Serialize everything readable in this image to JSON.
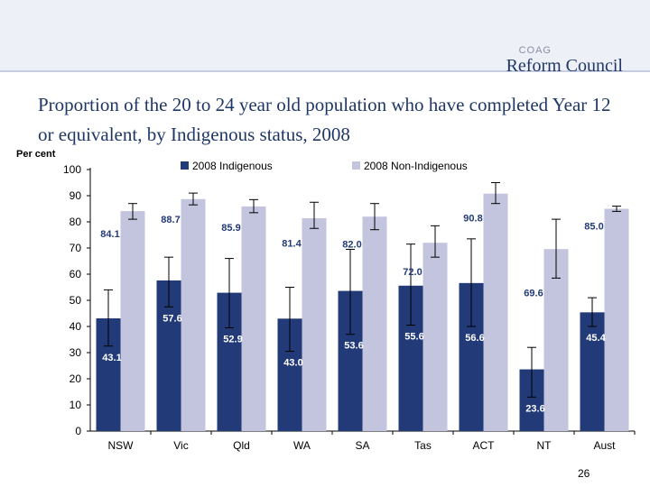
{
  "logo": {
    "small": "COAG",
    "name": "Reform Council"
  },
  "page_title": "Proportion of the 20 to 24 year old population who have completed Year 12 or equivalent, by Indigenous status, 2008",
  "page_number": "26",
  "colors": {
    "indigenous": "#223a78",
    "non_indigenous": "#c3c4dd",
    "error_bar": "#000000"
  },
  "chart_data": {
    "type": "bar",
    "title": "",
    "xlabel": "",
    "ylabel": "Per cent",
    "ylim": [
      0,
      100
    ],
    "yticks": [
      0,
      10,
      20,
      30,
      40,
      50,
      60,
      70,
      80,
      90,
      100
    ],
    "legend_position": "top",
    "categories": [
      "NSW",
      "Vic",
      "Qld",
      "WA",
      "SA",
      "Tas",
      "ACT",
      "NT",
      "Aust"
    ],
    "series": [
      {
        "name": "2008 Indigenous",
        "values": [
          43.1,
          57.6,
          52.9,
          43.0,
          53.6,
          55.6,
          56.6,
          23.6,
          45.4
        ],
        "labels": [
          "43.1",
          "57.6",
          "52.9",
          "43.0",
          "53.6",
          "55.6",
          "56.6",
          "23.6",
          "45.4"
        ],
        "error_low": [
          32.5,
          47.5,
          39.5,
          30.5,
          37.0,
          40.5,
          40.0,
          13.0,
          40.0
        ],
        "error_high": [
          54.0,
          66.5,
          66.0,
          55.0,
          69.5,
          71.5,
          73.5,
          32.0,
          51.0
        ]
      },
      {
        "name": "2008 Non-Indigenous",
        "values": [
          84.1,
          88.7,
          85.9,
          81.4,
          82.0,
          72.0,
          90.8,
          69.6,
          85.0
        ],
        "labels": [
          "84.1",
          "88.7",
          "85.9",
          "81.4",
          "82.0",
          "72.0",
          "90.8",
          "69.6",
          "85.0"
        ],
        "error_low": [
          81.0,
          86.5,
          83.5,
          77.5,
          77.0,
          66.5,
          87.0,
          58.5,
          84.0
        ],
        "error_high": [
          87.0,
          91.0,
          88.5,
          87.5,
          87.0,
          78.5,
          95.0,
          81.0,
          86.0
        ]
      }
    ]
  }
}
